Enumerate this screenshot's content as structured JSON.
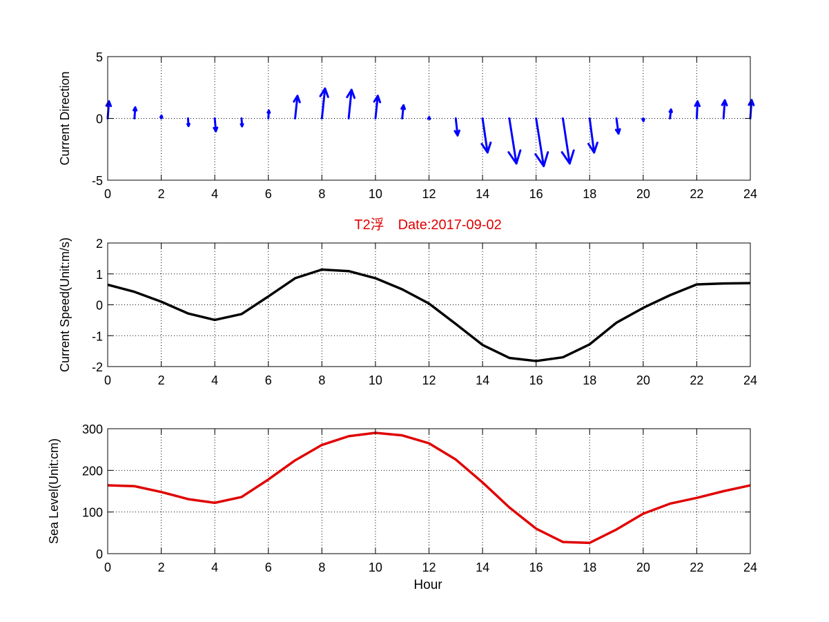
{
  "figure": {
    "title": "T2浮　Date:2017-09-02",
    "title_color": "#e00000",
    "xlabel": "Hour"
  },
  "chart_data": [
    {
      "type": "quiver",
      "ylabel": "Current Direction",
      "xlim": [
        0,
        24
      ],
      "ylim": [
        -5,
        5
      ],
      "xticks": [
        0,
        2,
        4,
        6,
        8,
        10,
        12,
        14,
        16,
        18,
        20,
        22,
        24
      ],
      "yticks": [
        -5,
        0,
        5
      ],
      "grid": true,
      "color": "#0000ff",
      "x": [
        0,
        1,
        2,
        3,
        4,
        5,
        6,
        7,
        8,
        9,
        10,
        11,
        12,
        13,
        14,
        15,
        16,
        17,
        18,
        19,
        20,
        21,
        22,
        23,
        24
      ],
      "u": [
        0.05,
        0.03,
        0.01,
        0.02,
        0.04,
        0.02,
        0.02,
        0.09,
        0.12,
        0.11,
        0.09,
        0.05,
        0.01,
        0.07,
        0.19,
        0.27,
        0.29,
        0.26,
        0.17,
        0.08,
        0.01,
        0.04,
        0.03,
        0.05,
        0.05
      ],
      "v": [
        0.65,
        0.42,
        0.11,
        -0.29,
        -0.49,
        -0.3,
        0.3,
        0.86,
        1.14,
        1.09,
        0.86,
        0.5,
        0.05,
        -0.65,
        -1.3,
        -1.72,
        -1.82,
        -1.72,
        -1.3,
        -0.58,
        -0.1,
        0.34,
        0.65,
        0.69,
        0.7
      ]
    },
    {
      "type": "line",
      "ylabel": "Current Speed(Unit:m/s)",
      "xlim": [
        0,
        24
      ],
      "ylim": [
        -2,
        2
      ],
      "xticks": [
        0,
        2,
        4,
        6,
        8,
        10,
        12,
        14,
        16,
        18,
        20,
        22,
        24
      ],
      "yticks": [
        -2,
        -1,
        0,
        1,
        2
      ],
      "grid": true,
      "color": "#000000",
      "x": [
        0,
        1,
        2,
        3,
        4,
        5,
        6,
        7,
        8,
        9,
        10,
        11,
        12,
        13,
        14,
        15,
        16,
        17,
        18,
        19,
        20,
        21,
        22,
        23,
        24
      ],
      "values": [
        0.65,
        0.42,
        0.1,
        -0.28,
        -0.49,
        -0.3,
        0.27,
        0.86,
        1.14,
        1.09,
        0.86,
        0.5,
        0.04,
        -0.62,
        -1.3,
        -1.72,
        -1.82,
        -1.7,
        -1.28,
        -0.58,
        -0.1,
        0.31,
        0.66,
        0.69,
        0.7
      ]
    },
    {
      "type": "line",
      "ylabel": "Sea Level(Unit:cm)",
      "xlabel": "Hour",
      "xlim": [
        0,
        24
      ],
      "ylim": [
        0,
        300
      ],
      "xticks": [
        0,
        2,
        4,
        6,
        8,
        10,
        12,
        14,
        16,
        18,
        20,
        22,
        24
      ],
      "yticks": [
        0,
        100,
        200,
        300
      ],
      "grid": true,
      "color": "#e00000",
      "x": [
        0,
        1,
        2,
        3,
        4,
        5,
        6,
        7,
        8,
        9,
        10,
        11,
        12,
        13,
        14,
        15,
        16,
        17,
        18,
        19,
        20,
        21,
        22,
        23,
        24
      ],
      "values": [
        164,
        162,
        148,
        131,
        122,
        136,
        178,
        224,
        261,
        282,
        290,
        284,
        265,
        226,
        171,
        111,
        60,
        28,
        26,
        58,
        96,
        120,
        134,
        150,
        164
      ]
    }
  ]
}
